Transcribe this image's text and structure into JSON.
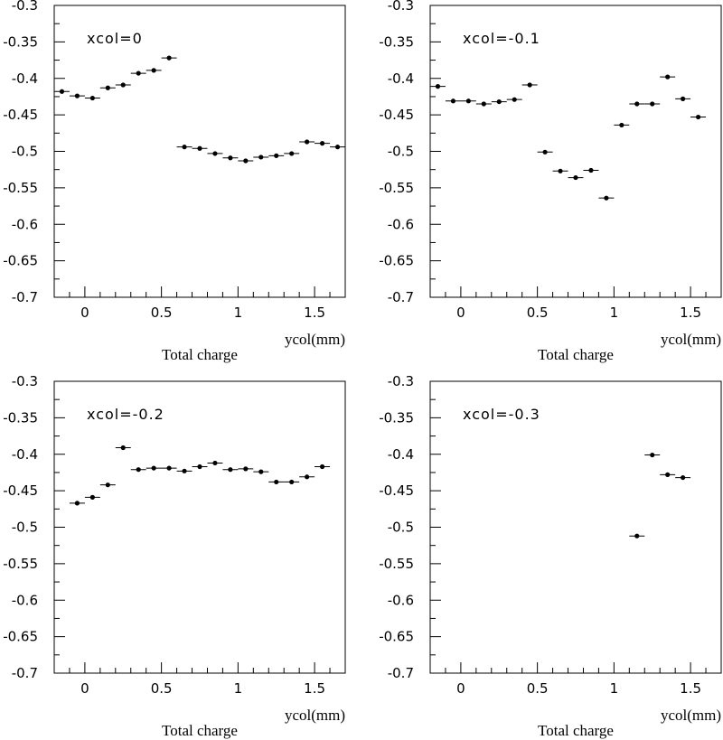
{
  "chart_data": [
    {
      "type": "scatter",
      "annotation": "xcol=0",
      "xlabel": "ycol(mm)",
      "bottom_title": "Total charge",
      "xlim": [
        -0.2,
        1.7
      ],
      "ylim": [
        -0.7,
        -0.3
      ],
      "xticks": [
        "0",
        "0.5",
        "1",
        "1.5"
      ],
      "yticks": [
        "-0.3",
        "-0.35",
        "-0.4",
        "-0.45",
        "-0.5",
        "-0.55",
        "-0.6",
        "-0.65",
        "-0.7"
      ],
      "x_bin_half_width": 0.05,
      "points": [
        {
          "x": -0.15,
          "y": -0.418
        },
        {
          "x": -0.05,
          "y": -0.424
        },
        {
          "x": 0.05,
          "y": -0.427
        },
        {
          "x": 0.15,
          "y": -0.413
        },
        {
          "x": 0.25,
          "y": -0.409
        },
        {
          "x": 0.35,
          "y": -0.393
        },
        {
          "x": 0.45,
          "y": -0.389
        },
        {
          "x": 0.55,
          "y": -0.372
        },
        {
          "x": 0.65,
          "y": -0.494
        },
        {
          "x": 0.75,
          "y": -0.496
        },
        {
          "x": 0.85,
          "y": -0.503
        },
        {
          "x": 0.95,
          "y": -0.509
        },
        {
          "x": 1.05,
          "y": -0.513
        },
        {
          "x": 1.15,
          "y": -0.508
        },
        {
          "x": 1.25,
          "y": -0.506
        },
        {
          "x": 1.35,
          "y": -0.503
        },
        {
          "x": 1.45,
          "y": -0.487
        },
        {
          "x": 1.55,
          "y": -0.489
        },
        {
          "x": 1.65,
          "y": -0.494
        }
      ]
    },
    {
      "type": "scatter",
      "annotation": "xcol=-0.1",
      "xlabel": "ycol(mm)",
      "bottom_title": "Total charge",
      "xlim": [
        -0.2,
        1.7
      ],
      "ylim": [
        -0.7,
        -0.3
      ],
      "xticks": [
        "0",
        "0.5",
        "1",
        "1.5"
      ],
      "yticks": [
        "-0.3",
        "-0.35",
        "-0.4",
        "-0.45",
        "-0.5",
        "-0.55",
        "-0.6",
        "-0.65",
        "-0.7"
      ],
      "x_bin_half_width": 0.05,
      "points": [
        {
          "x": -0.15,
          "y": -0.411
        },
        {
          "x": -0.05,
          "y": -0.431
        },
        {
          "x": 0.05,
          "y": -0.431
        },
        {
          "x": 0.15,
          "y": -0.435
        },
        {
          "x": 0.25,
          "y": -0.432
        },
        {
          "x": 0.35,
          "y": -0.429
        },
        {
          "x": 0.45,
          "y": -0.409
        },
        {
          "x": 0.55,
          "y": -0.501
        },
        {
          "x": 0.65,
          "y": -0.527
        },
        {
          "x": 0.75,
          "y": -0.536
        },
        {
          "x": 0.85,
          "y": -0.526
        },
        {
          "x": 0.95,
          "y": -0.564
        },
        {
          "x": 1.05,
          "y": -0.464
        },
        {
          "x": 1.15,
          "y": -0.435
        },
        {
          "x": 1.25,
          "y": -0.435
        },
        {
          "x": 1.35,
          "y": -0.398
        },
        {
          "x": 1.45,
          "y": -0.428
        },
        {
          "x": 1.55,
          "y": -0.453
        }
      ]
    },
    {
      "type": "scatter",
      "annotation": "xcol=-0.2",
      "xlabel": "ycol(mm)",
      "bottom_title": "Total charge",
      "xlim": [
        -0.2,
        1.7
      ],
      "ylim": [
        -0.7,
        -0.3
      ],
      "xticks": [
        "0",
        "0.5",
        "1",
        "1.5"
      ],
      "yticks": [
        "-0.3",
        "-0.35",
        "-0.4",
        "-0.45",
        "-0.5",
        "-0.55",
        "-0.6",
        "-0.65",
        "-0.7"
      ],
      "x_bin_half_width": 0.05,
      "points": [
        {
          "x": -0.05,
          "y": -0.467
        },
        {
          "x": 0.05,
          "y": -0.459
        },
        {
          "x": 0.15,
          "y": -0.442
        },
        {
          "x": 0.25,
          "y": -0.391
        },
        {
          "x": 0.35,
          "y": -0.421
        },
        {
          "x": 0.45,
          "y": -0.419
        },
        {
          "x": 0.55,
          "y": -0.419
        },
        {
          "x": 0.65,
          "y": -0.423
        },
        {
          "x": 0.75,
          "y": -0.417
        },
        {
          "x": 0.85,
          "y": -0.412
        },
        {
          "x": 0.95,
          "y": -0.421
        },
        {
          "x": 1.05,
          "y": -0.42
        },
        {
          "x": 1.15,
          "y": -0.424
        },
        {
          "x": 1.25,
          "y": -0.438
        },
        {
          "x": 1.35,
          "y": -0.438
        },
        {
          "x": 1.45,
          "y": -0.431
        },
        {
          "x": 1.55,
          "y": -0.417
        }
      ]
    },
    {
      "type": "scatter",
      "annotation": "xcol=-0.3",
      "xlabel": "ycol(mm)",
      "bottom_title": "Total charge",
      "xlim": [
        -0.2,
        1.7
      ],
      "ylim": [
        -0.7,
        -0.3
      ],
      "xticks": [
        "0",
        "0.5",
        "1",
        "1.5"
      ],
      "yticks": [
        "-0.3",
        "-0.35",
        "-0.4",
        "-0.45",
        "-0.5",
        "-0.55",
        "-0.6",
        "-0.65",
        "-0.7"
      ],
      "x_bin_half_width": 0.05,
      "points": [
        {
          "x": 1.15,
          "y": -0.512
        },
        {
          "x": 1.25,
          "y": -0.401
        },
        {
          "x": 1.35,
          "y": -0.428
        },
        {
          "x": 1.45,
          "y": -0.432
        }
      ]
    }
  ]
}
